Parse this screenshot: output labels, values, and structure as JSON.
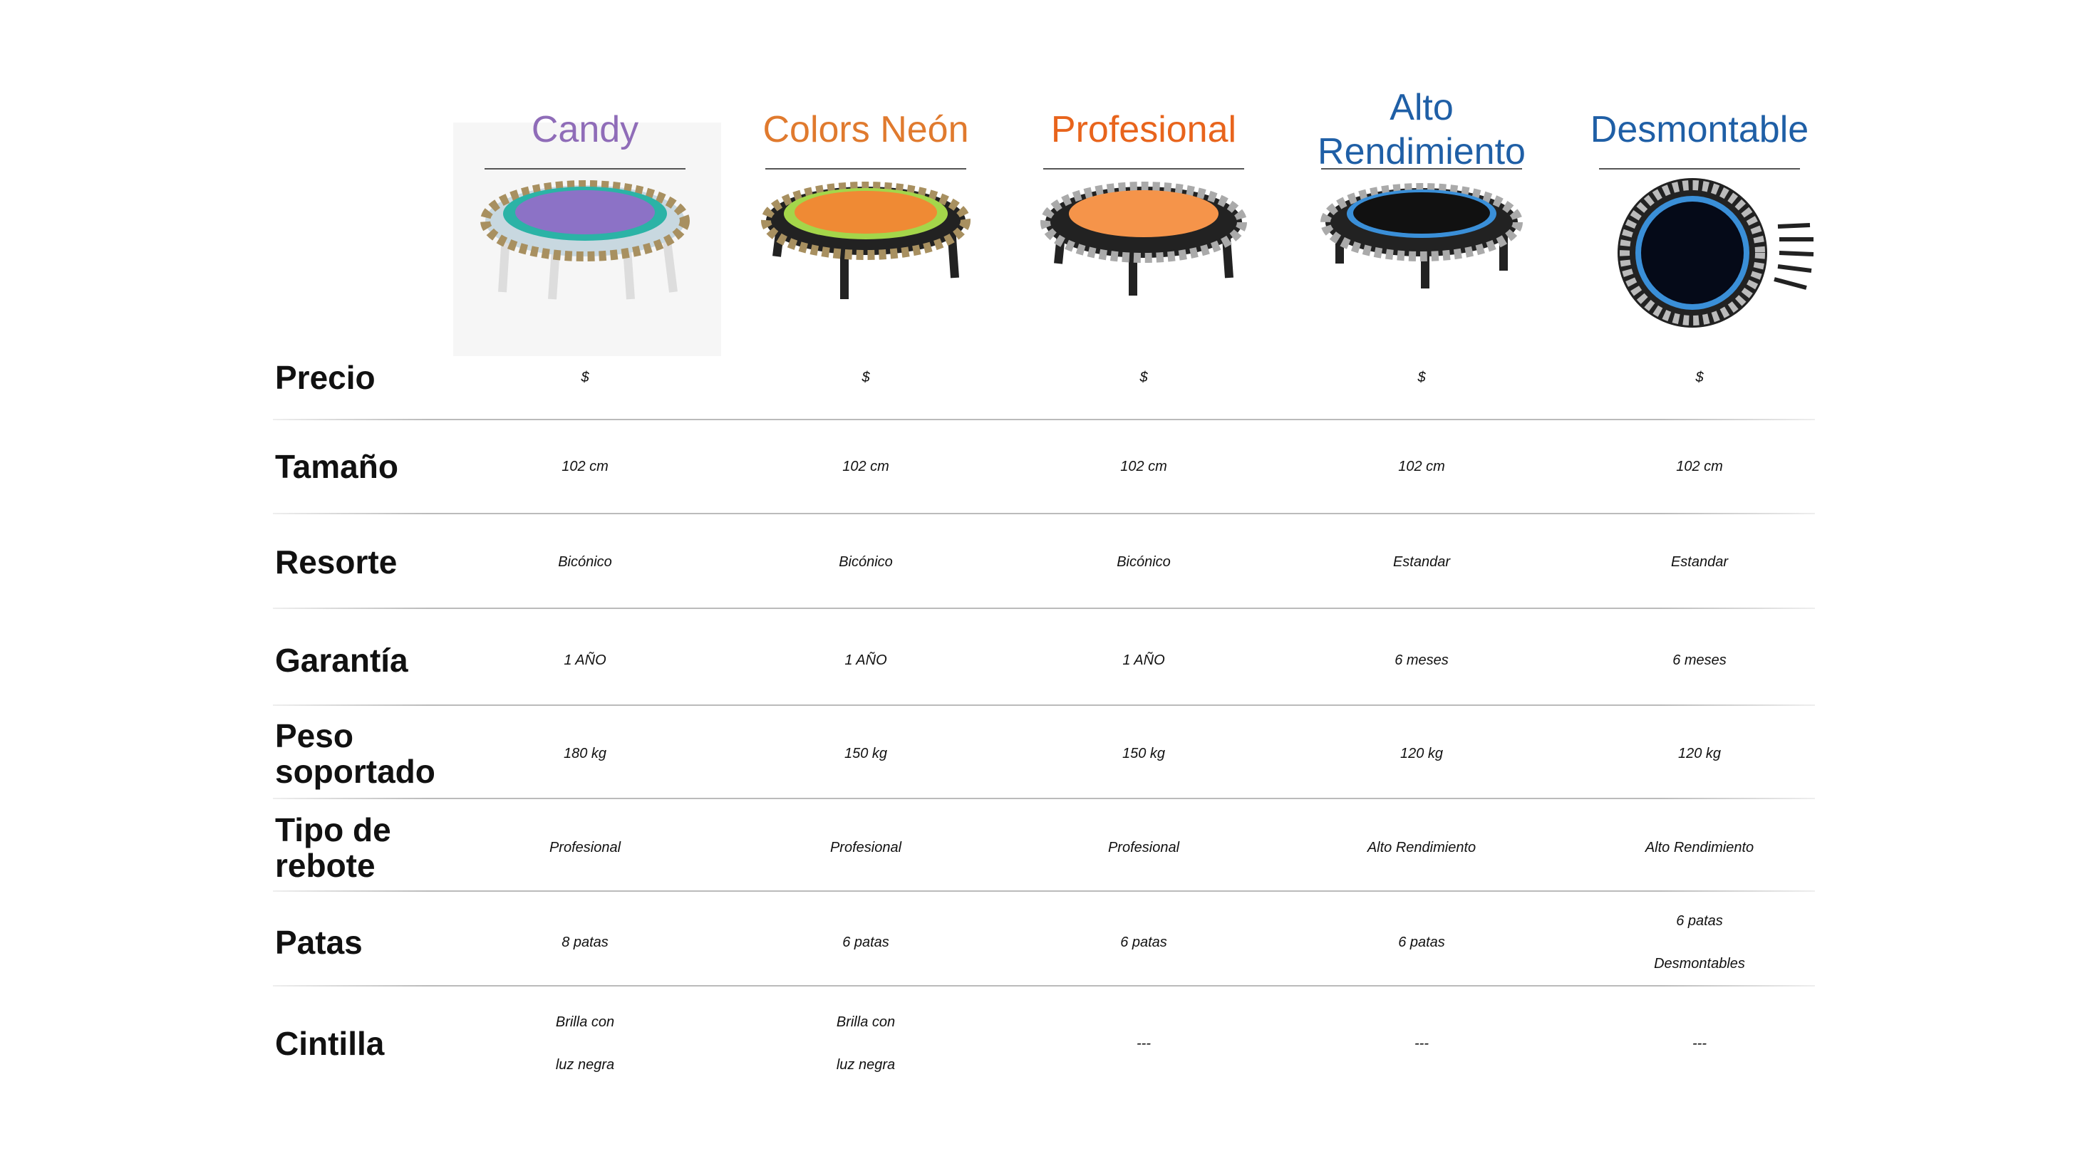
{
  "products": [
    {
      "name": "Candy",
      "color": "#8f6cb8"
    },
    {
      "name": "Colors Neón",
      "color": "#e07a2e"
    },
    {
      "name": "Profesional",
      "color": "#e8641c"
    },
    {
      "name": "Alto\nRendimiento",
      "color": "#1f5fa6"
    },
    {
      "name": "Desmontable",
      "color": "#1f5fa6"
    }
  ],
  "table": {
    "rows": [
      {
        "label": "Precio",
        "cells": [
          "$",
          "$",
          "$",
          "$",
          "$"
        ]
      },
      {
        "label": "Tamaño",
        "cells": [
          "102 cm",
          "102 cm",
          "102 cm",
          "102 cm",
          "102 cm"
        ]
      },
      {
        "label": "Resorte",
        "cells": [
          "Bicónico",
          "Bicónico",
          "Bicónico",
          "Estandar",
          "Estandar"
        ]
      },
      {
        "label": "Garantía",
        "cells": [
          "1 AÑO",
          "1 AÑO",
          "1 AÑO",
          "6 meses",
          "6 meses"
        ]
      },
      {
        "label": "Peso\nsoportado",
        "cells": [
          "180 kg",
          "150 kg",
          "150 kg",
          "120 kg",
          "120 kg"
        ]
      },
      {
        "label": "Tipo de\nrebote",
        "cells": [
          "Profesional",
          "Profesional",
          "Profesional",
          "Alto Rendimiento",
          "Alto Rendimiento"
        ]
      },
      {
        "label": "Patas",
        "cells": [
          "8 patas",
          "6 patas",
          "6 patas",
          "6 patas",
          "6 patas\nDesmontables"
        ]
      },
      {
        "label": "Cintilla",
        "cells": [
          "Brilla con\nluz negra",
          "Brilla con\nluz negra",
          "---",
          "---",
          "---"
        ]
      }
    ]
  }
}
